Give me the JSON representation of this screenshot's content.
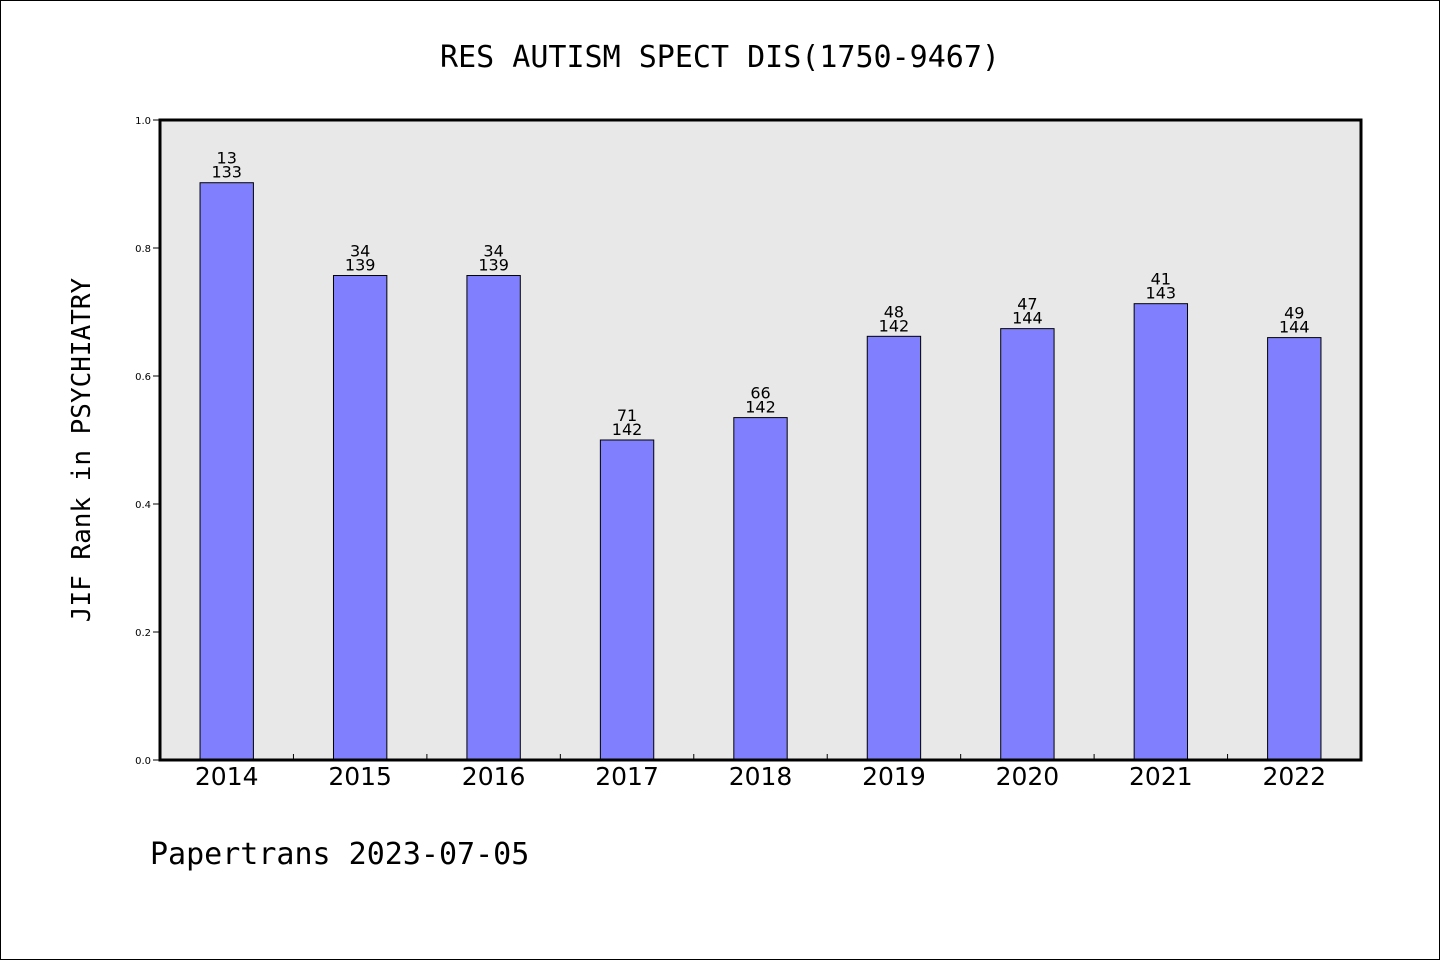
{
  "chart_data": {
    "type": "bar",
    "title": "RES AUTISM SPECT DIS(1750-9467)",
    "xlabel": "",
    "ylabel": "JIF Rank in PSYCHIATRY",
    "ylim": [
      0,
      1.0
    ],
    "y_ticks": [
      0.0,
      0.2,
      0.4,
      0.6,
      0.8,
      1.0
    ],
    "y_tick_labels": [
      "0.0",
      "0.2",
      "0.4",
      "0.6",
      "0.8",
      "1.0"
    ],
    "categories": [
      "2014",
      "2015",
      "2016",
      "2017",
      "2018",
      "2019",
      "2020",
      "2021",
      "2022"
    ],
    "values": [
      0.902,
      0.757,
      0.757,
      0.5,
      0.535,
      0.662,
      0.674,
      0.713,
      0.66
    ],
    "rank": [
      "13",
      "34",
      "34",
      "71",
      "66",
      "48",
      "47",
      "41",
      "49"
    ],
    "total": [
      "133",
      "139",
      "139",
      "142",
      "142",
      "142",
      "144",
      "143",
      "144"
    ],
    "bar_color": "#8080ff",
    "plot_background": "#e8e8e8",
    "grid": false,
    "legend": "none"
  },
  "footer": {
    "credit": "Papertrans 2023-07-05"
  }
}
